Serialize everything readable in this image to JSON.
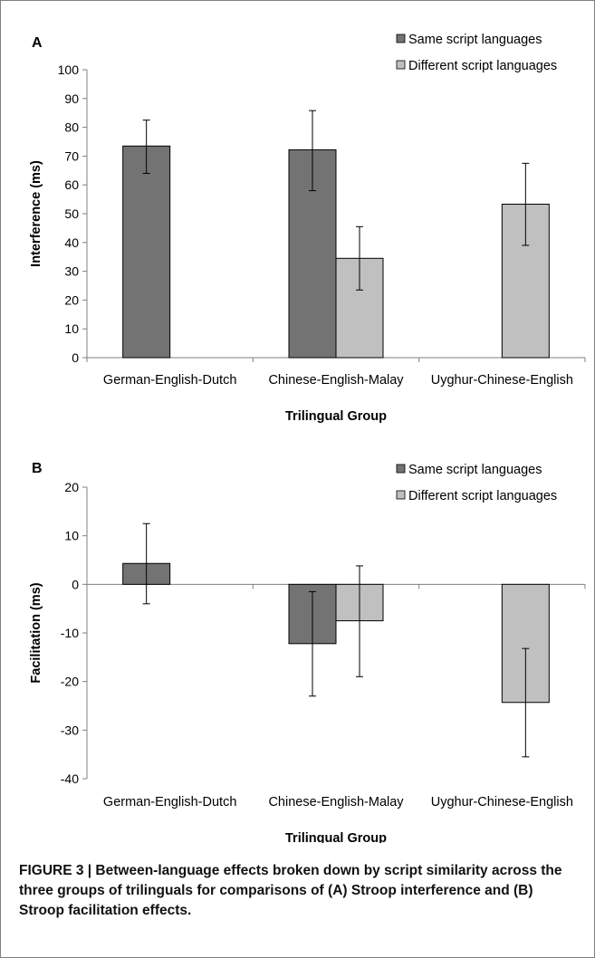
{
  "figure": {
    "caption": "FIGURE 3 | Between-language effects broken down by script similarity across the three groups of trilinguals for comparisons of (A) Stroop interference and (B) Stroop facilitation effects."
  },
  "chart_data": [
    {
      "panel": "A",
      "type": "bar",
      "categories": [
        "German-English-Dutch",
        "Chinese-English-Malay",
        "Uyghur-Chinese-English"
      ],
      "series": [
        {
          "name": "Same script languages",
          "color": "#737373",
          "values": [
            73.5,
            72.2,
            null
          ],
          "error_low": [
            64,
            58,
            null
          ],
          "error_high": [
            82.5,
            85.8,
            null
          ]
        },
        {
          "name": "Different script languages",
          "color": "#c0c0c0",
          "values": [
            null,
            34.5,
            53.3
          ],
          "error_low": [
            null,
            23.5,
            39
          ],
          "error_high": [
            null,
            45.5,
            67.5
          ]
        }
      ],
      "xlabel": "Trilingual Group",
      "ylabel": "Interference (ms)",
      "ylim": [
        0,
        100
      ],
      "yticks": [
        0,
        10,
        20,
        30,
        40,
        50,
        60,
        70,
        80,
        90,
        100
      ],
      "legend": "top-right",
      "grid": false
    },
    {
      "panel": "B",
      "type": "bar",
      "categories": [
        "German-English-Dutch",
        "Chinese-English-Malay",
        "Uyghur-Chinese-English"
      ],
      "series": [
        {
          "name": "Same script languages",
          "color": "#737373",
          "values": [
            4.3,
            -12.2,
            null
          ],
          "error_low": [
            -4,
            -23,
            null
          ],
          "error_high": [
            12.5,
            -1.5,
            null
          ]
        },
        {
          "name": "Different script languages",
          "color": "#c0c0c0",
          "values": [
            null,
            -7.5,
            -24.3
          ],
          "error_low": [
            null,
            -19,
            -35.5
          ],
          "error_high": [
            null,
            3.8,
            -13.2
          ]
        }
      ],
      "xlabel": "Trilingual Group",
      "ylabel": "Facilitation (ms)",
      "ylim": [
        -40,
        20
      ],
      "yticks": [
        -40,
        -30,
        -20,
        -10,
        0,
        10,
        20
      ],
      "legend": "top-right",
      "grid": false
    }
  ]
}
